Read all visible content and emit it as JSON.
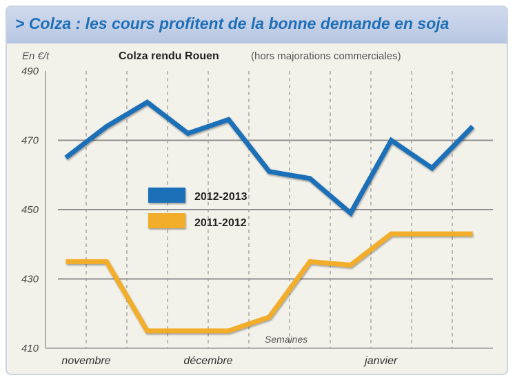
{
  "header": {
    "banner_title": "> Colza : les cours profitent de la bonne demande en soja"
  },
  "chart_data": {
    "type": "line",
    "title": "Colza rendu Rouen",
    "subtitle": "(hors majorations commerciales)",
    "unit_label": "En €/t",
    "xlabel": "Semaines",
    "ylim": [
      410,
      490
    ],
    "yticks": [
      410,
      430,
      450,
      470,
      490
    ],
    "x_tick_labels": [
      {
        "label": "novembre",
        "x": 0.5
      },
      {
        "label": "décembre",
        "x": 3.5
      },
      {
        "label": "janvier",
        "x": 7.75
      }
    ],
    "x": [
      0,
      1,
      2,
      3,
      4,
      5,
      6,
      7,
      8,
      9,
      10
    ],
    "xlim": [
      -0.5,
      10.5
    ],
    "grid": "horizontal solid, vertical dashed",
    "legend_position": "center-left",
    "series": [
      {
        "name": "2012-2013",
        "color": "#1f6fb8",
        "values": [
          465,
          474,
          481,
          472,
          476,
          461,
          459,
          449,
          470,
          462,
          474
        ]
      },
      {
        "name": "2011-2012",
        "color": "#f2ae2c",
        "values": [
          435,
          435,
          415,
          415,
          415,
          419,
          435,
          434,
          443,
          443,
          443
        ]
      }
    ]
  }
}
